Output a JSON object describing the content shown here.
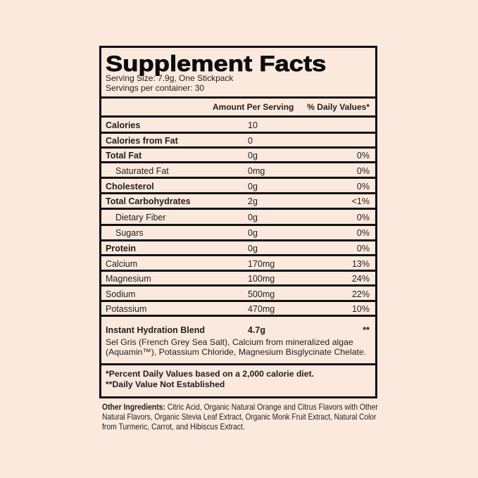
{
  "page": {
    "background": "#fce9dd"
  },
  "label": {
    "title": "Supplement Facts",
    "serving_size": "Serving Size: 7.9g, One Stickpack",
    "servings_per_container": "Servings per container: 30",
    "columns": {
      "amount": "Amount Per Serving",
      "daily_value": "% Daily Values*"
    },
    "rows": [
      {
        "name": "Calories",
        "amount": "10",
        "dv": "",
        "bold": true,
        "indent": false
      },
      {
        "name": "Calories from Fat",
        "amount": "0",
        "dv": "",
        "bold": true,
        "indent": false
      },
      {
        "name": "Total Fat",
        "amount": "0g",
        "dv": "0%",
        "bold": true,
        "indent": false
      },
      {
        "name": "Saturated Fat",
        "amount": "0mg",
        "dv": "0%",
        "bold": false,
        "indent": true
      },
      {
        "name": "Cholesterol",
        "amount": "0g",
        "dv": "0%",
        "bold": true,
        "indent": false
      },
      {
        "name": "Total Carbohydrates",
        "amount": "2g",
        "dv": "<1%",
        "bold": true,
        "indent": false
      },
      {
        "name": "Dietary Fiber",
        "amount": "0g",
        "dv": "0%",
        "bold": false,
        "indent": true
      },
      {
        "name": "Sugars",
        "amount": "0g",
        "dv": "0%",
        "bold": false,
        "indent": true
      },
      {
        "name": "Protein",
        "amount": "0g",
        "dv": "0%",
        "bold": true,
        "indent": false
      },
      {
        "name": "Calcium",
        "amount": "170mg",
        "dv": "13%",
        "bold": false,
        "indent": false
      },
      {
        "name": "Magnesium",
        "amount": "100mg",
        "dv": "24%",
        "bold": false,
        "indent": false
      },
      {
        "name": "Sodium",
        "amount": "500mg",
        "dv": "22%",
        "bold": false,
        "indent": false
      },
      {
        "name": "Potassium",
        "amount": "470mg",
        "dv": "10%",
        "bold": false,
        "indent": false
      }
    ],
    "blend": {
      "name": "Instant Hydration Blend",
      "amount": "4.7g",
      "dv": "**",
      "description_lines": [
        "Sel Gris (French Grey Sea Salt), Calcium from mineralized algae",
        "(Aquamin™), Potassium Chloride, Magnesium Bisglycinate Chelate."
      ]
    },
    "footnotes": [
      "*Percent Daily Values based on a 2,000 calorie diet.",
      "**Daily Value Not Established"
    ],
    "other_ingredients": {
      "label": "Other Ingredients:",
      "line1_rest": " Citric Acid, Organic Natural Orange and Citrus Flavors with Other",
      "lines": [
        "Natural Flavors, Organic Stevia Leaf Extract, Organic Monk Fruit Extract, Natural Color",
        "from Turmeric, Carrot, and Hibiscus Extract."
      ]
    }
  }
}
